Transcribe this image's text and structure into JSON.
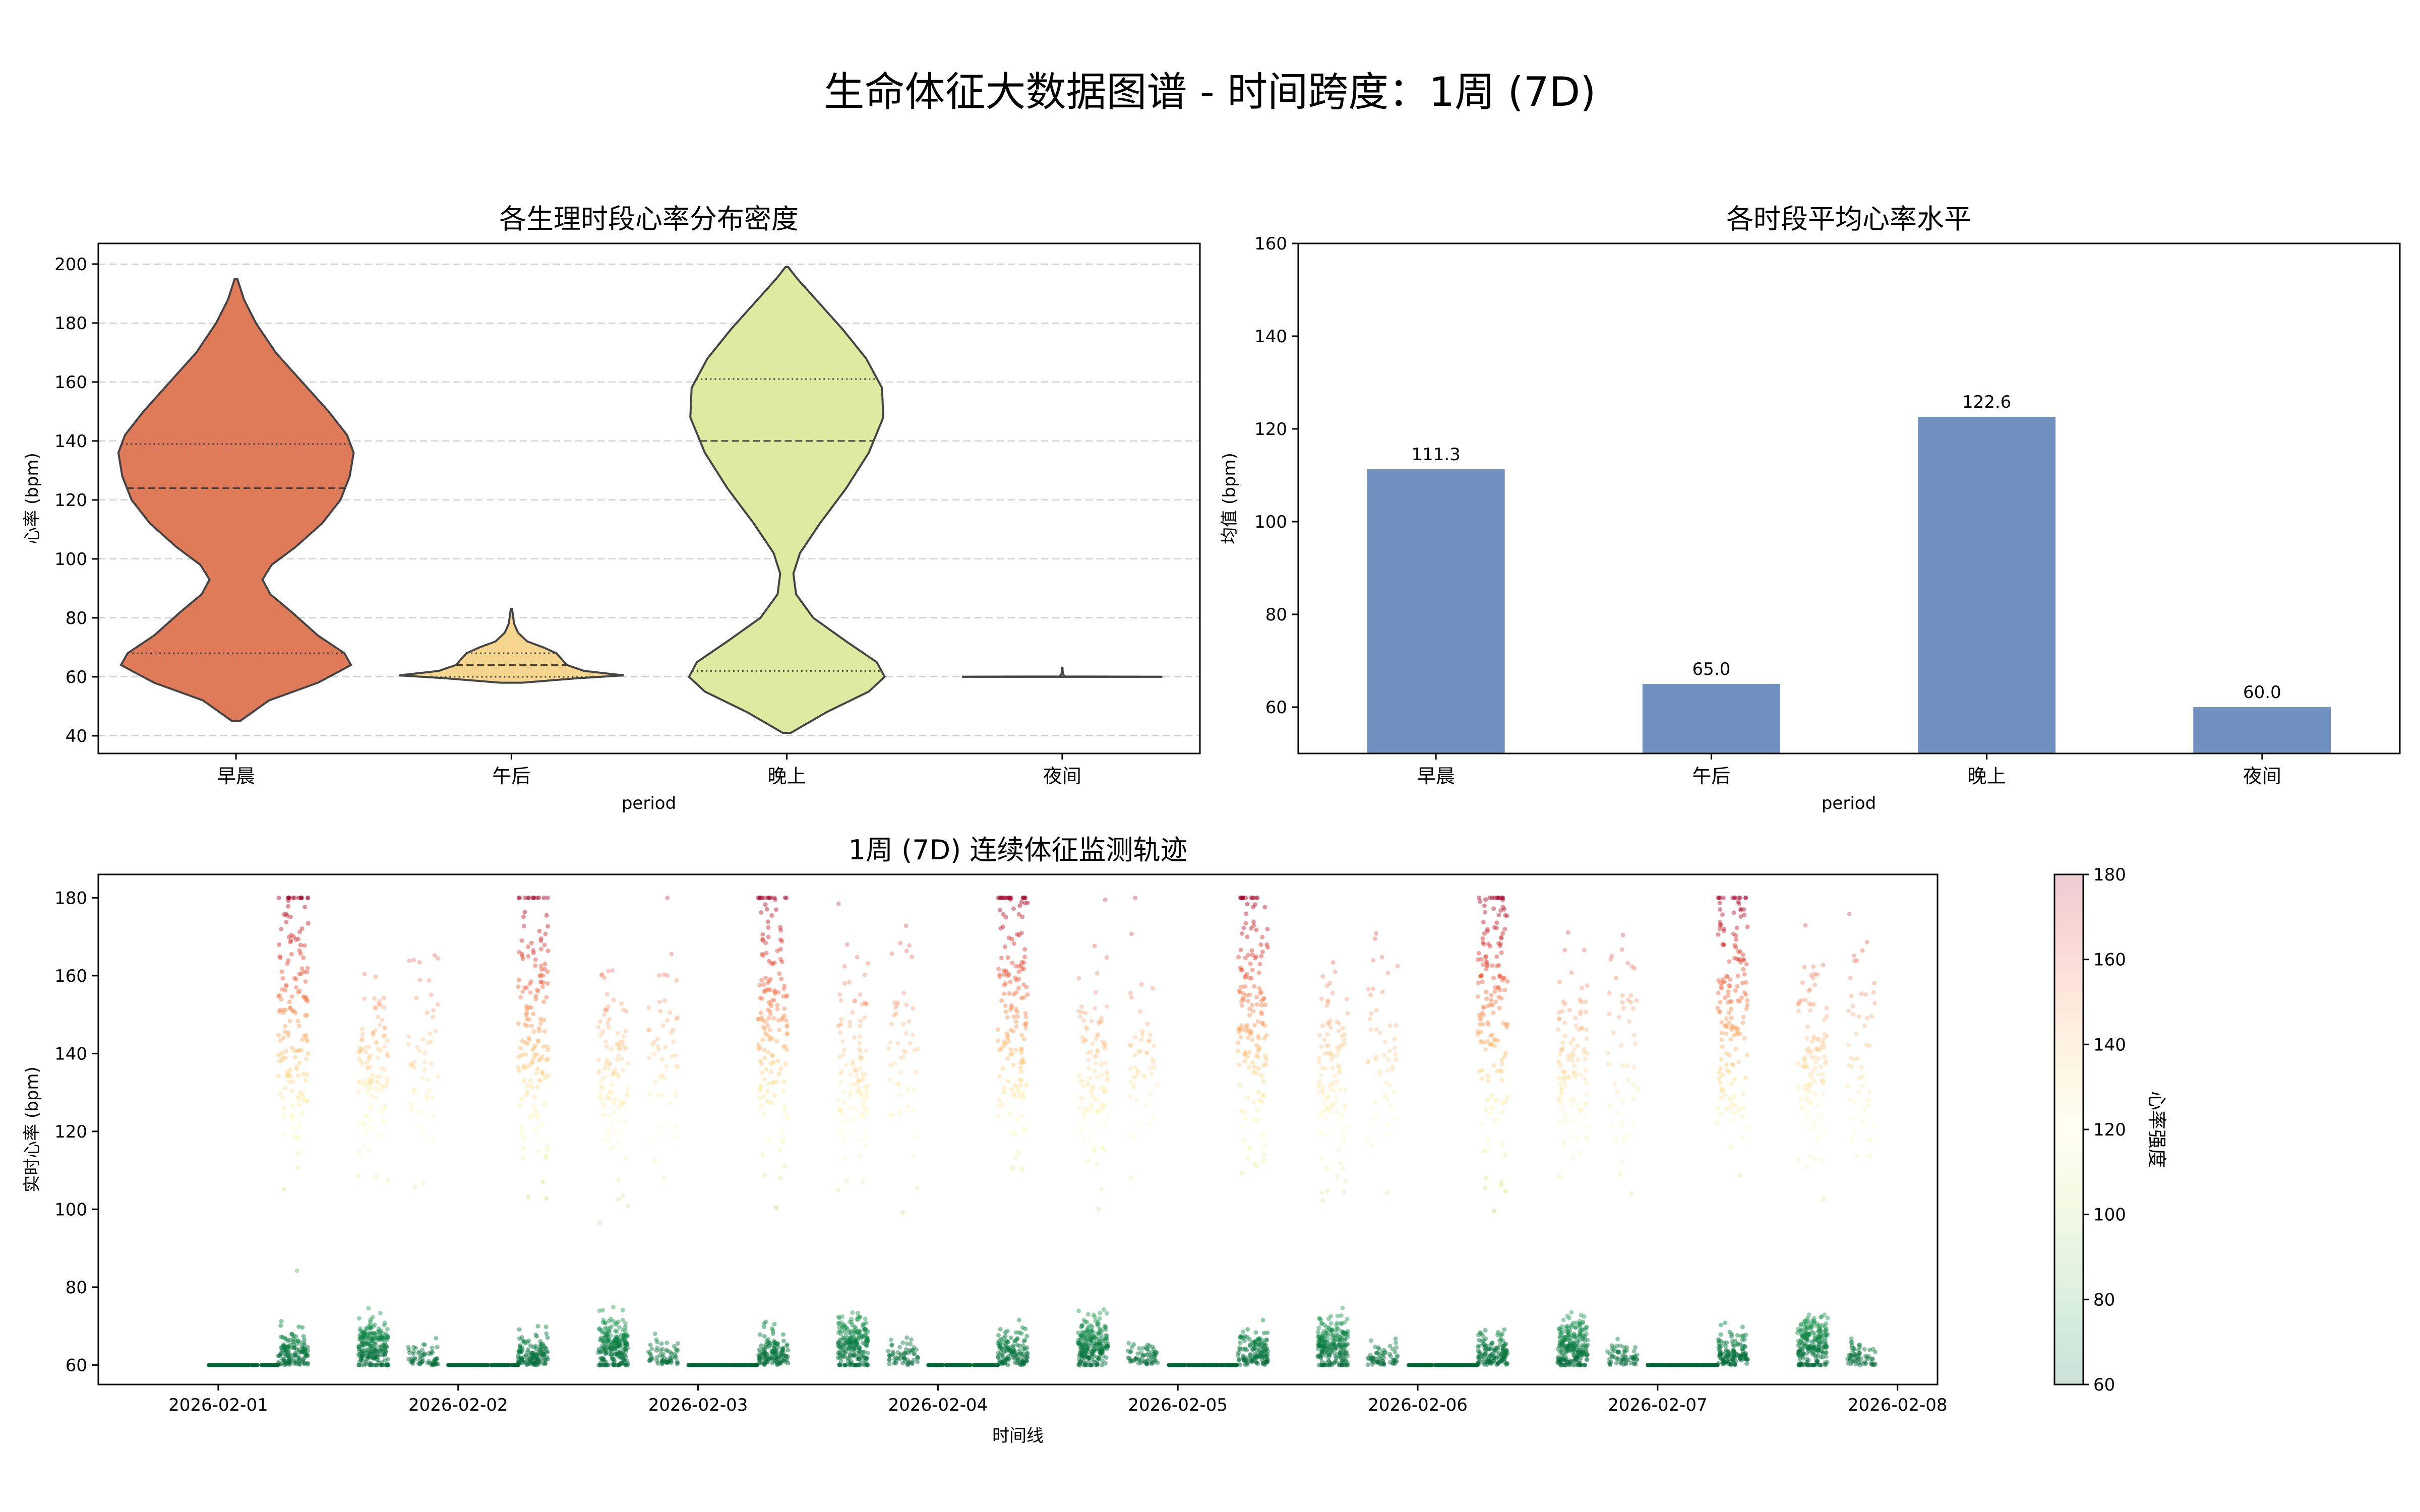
{
  "figure_title": "生命体征大数据图谱 - 时间跨度：1周 (7D)",
  "chart_data": [
    {
      "type": "violin",
      "title": "各生理时段心率分布密度",
      "xlabel": "period",
      "ylabel": "心率 (bpm)",
      "categories": [
        "早晨",
        "午后",
        "晚上",
        "夜间"
      ],
      "ylim": [
        34,
        207
      ],
      "yticks": [
        40,
        60,
        80,
        100,
        120,
        140,
        160,
        180,
        200
      ],
      "grid": true,
      "colors": [
        "#e07b59",
        "#f6d58f",
        "#deea9f",
        "#9bd4a2"
      ],
      "violins": [
        {
          "category": "早晨",
          "min": 45,
          "max": 195,
          "q1": 68,
          "median": 124,
          "q3": 139,
          "density": [
            [
              45,
              0.03
            ],
            [
              52,
              0.25
            ],
            [
              58,
              0.62
            ],
            [
              64,
              0.87
            ],
            [
              68,
              0.82
            ],
            [
              74,
              0.62
            ],
            [
              82,
              0.42
            ],
            [
              88,
              0.26
            ],
            [
              93,
              0.2
            ],
            [
              98,
              0.27
            ],
            [
              104,
              0.45
            ],
            [
              112,
              0.65
            ],
            [
              120,
              0.79
            ],
            [
              128,
              0.86
            ],
            [
              136,
              0.89
            ],
            [
              142,
              0.84
            ],
            [
              150,
              0.7
            ],
            [
              160,
              0.5
            ],
            [
              170,
              0.3
            ],
            [
              180,
              0.15
            ],
            [
              188,
              0.06
            ],
            [
              195,
              0.01
            ]
          ]
        },
        {
          "category": "午后",
          "min": 58,
          "max": 83,
          "q1": 60,
          "median": 64,
          "q3": 68,
          "density": [
            [
              58,
              0.08
            ],
            [
              59.5,
              0.5
            ],
            [
              60.5,
              0.85
            ],
            [
              62,
              0.55
            ],
            [
              64,
              0.42
            ],
            [
              66,
              0.38
            ],
            [
              68,
              0.34
            ],
            [
              70,
              0.24
            ],
            [
              72,
              0.12
            ],
            [
              75,
              0.05
            ],
            [
              78,
              0.02
            ],
            [
              83,
              0.005
            ]
          ]
        },
        {
          "category": "晚上",
          "min": 41,
          "max": 199,
          "q1": 62,
          "median": 140,
          "q3": 161,
          "density": [
            [
              41,
              0.03
            ],
            [
              48,
              0.3
            ],
            [
              55,
              0.62
            ],
            [
              60,
              0.74
            ],
            [
              65,
              0.68
            ],
            [
              72,
              0.45
            ],
            [
              80,
              0.2
            ],
            [
              88,
              0.07
            ],
            [
              95,
              0.05
            ],
            [
              102,
              0.1
            ],
            [
              112,
              0.25
            ],
            [
              124,
              0.45
            ],
            [
              136,
              0.62
            ],
            [
              148,
              0.73
            ],
            [
              158,
              0.72
            ],
            [
              168,
              0.6
            ],
            [
              178,
              0.42
            ],
            [
              188,
              0.22
            ],
            [
              195,
              0.08
            ],
            [
              199,
              0.01
            ]
          ]
        },
        {
          "category": "夜间",
          "min": 60,
          "max": 63,
          "q1": 60,
          "median": 60,
          "q3": 60,
          "density": [
            [
              60,
              0.75
            ],
            [
              60.05,
              0.75
            ],
            [
              60.1,
              0.02
            ],
            [
              61,
              0.005
            ],
            [
              63,
              0.002
            ]
          ]
        }
      ]
    },
    {
      "type": "bar",
      "title": "各时段平均心率水平",
      "xlabel": "period",
      "ylabel": "均值 (bpm)",
      "categories": [
        "早晨",
        "午后",
        "晚上",
        "夜间"
      ],
      "values": [
        111.3,
        65.0,
        122.6,
        60.0
      ],
      "value_labels": [
        "111.3",
        "65.0",
        "122.6",
        "60.0"
      ],
      "ylim": [
        50,
        160
      ],
      "yticks": [
        60,
        80,
        100,
        120,
        140,
        160
      ],
      "bar_color": "#7191c1",
      "grid": false
    },
    {
      "type": "scatter",
      "title": "1周 (7D) 连续体征监测轨迹",
      "xlabel": "时间线",
      "ylabel": "实时心率 (bpm)",
      "xticks": [
        "2026-02-01",
        "2026-02-02",
        "2026-02-03",
        "2026-02-04",
        "2026-02-05",
        "2026-02-06",
        "2026-02-07",
        "2026-02-08"
      ],
      "xlim": [
        "2026-01-31 12:00",
        "2026-02-08 04:00"
      ],
      "ylim": [
        55,
        186
      ],
      "yticks": [
        60,
        80,
        100,
        120,
        140,
        160,
        180
      ],
      "periods": [
        {
          "name": "早晨",
          "start": "06:00",
          "end": "09:00",
          "clip_high": 180
        },
        {
          "name": "午后",
          "start": "14:00",
          "end": "17:00",
          "clip_low": 60
        },
        {
          "name": "晚上",
          "start": "19:00",
          "end": "22:00",
          "clip_high": 180
        },
        {
          "name": "夜间",
          "start": "23:00",
          "end": "06:00",
          "value": 60
        }
      ],
      "colormap": "RdYlGn_r",
      "colorbar": {
        "label": "心率强度",
        "range": [
          60,
          180
        ],
        "ticks": [
          60,
          80,
          100,
          120,
          140,
          160,
          180
        ]
      }
    }
  ]
}
